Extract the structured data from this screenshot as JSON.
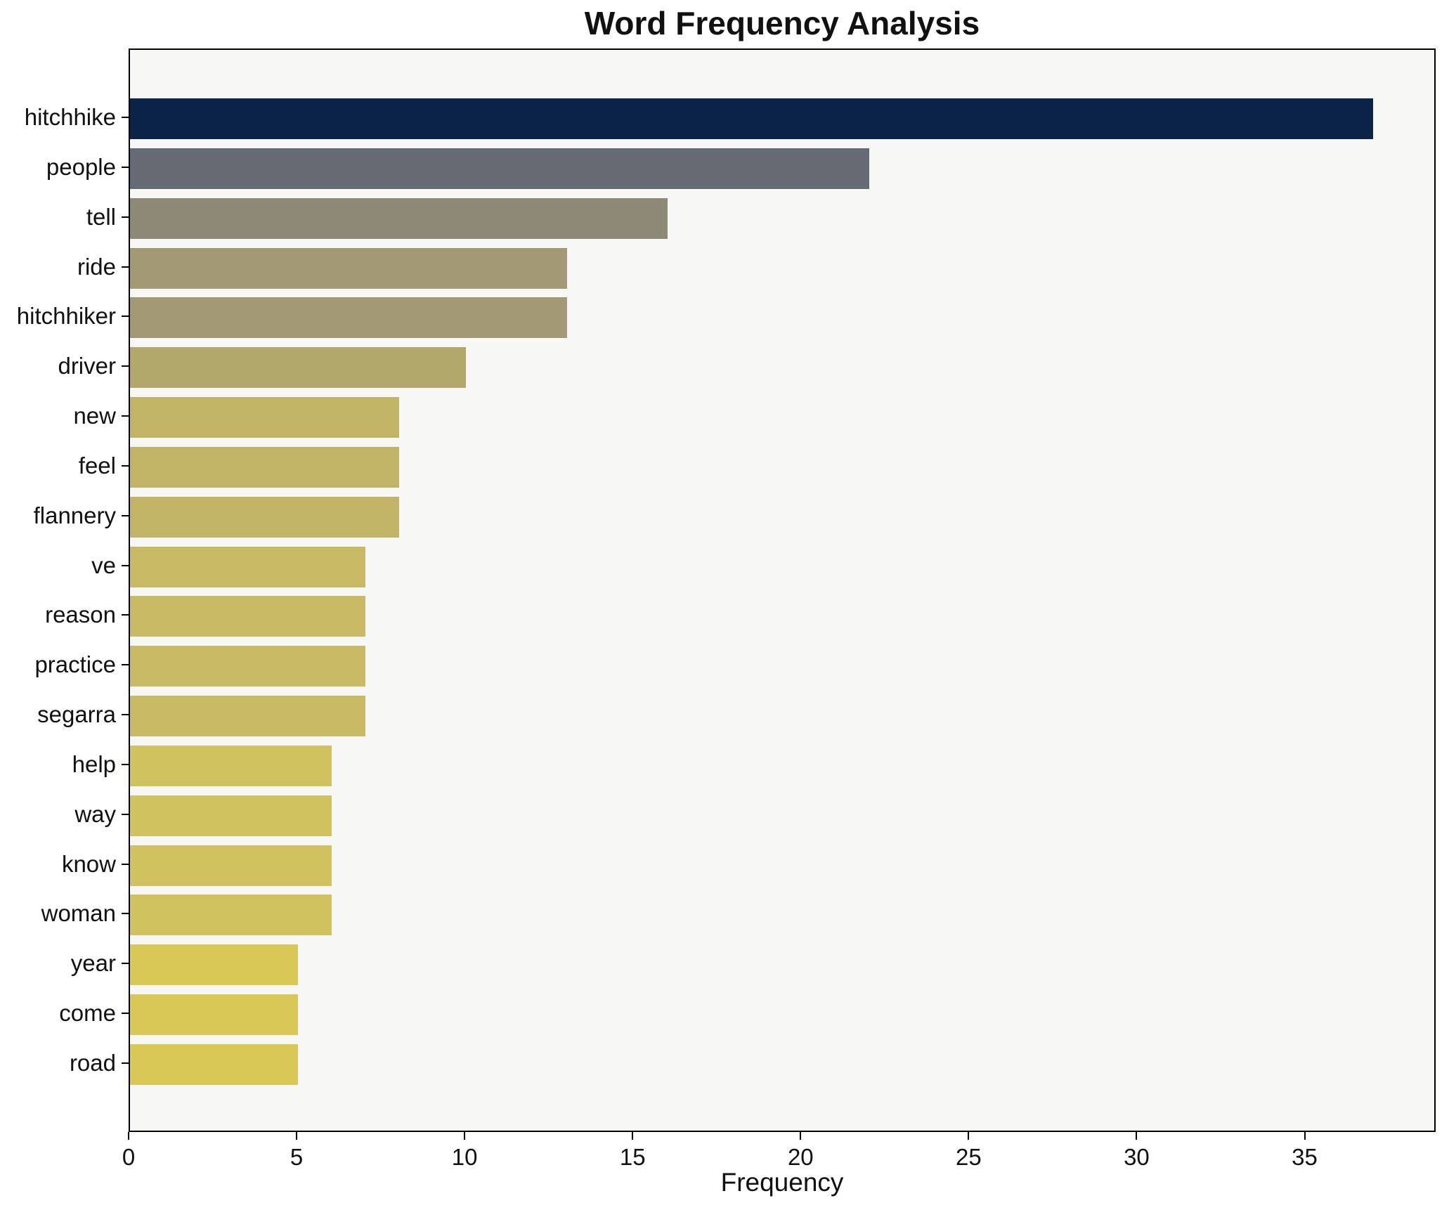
{
  "chart_data": {
    "type": "bar",
    "orientation": "horizontal",
    "title": "Word Frequency Analysis",
    "xlabel": "Frequency",
    "ylabel": "",
    "categories": [
      "hitchhike",
      "people",
      "tell",
      "ride",
      "hitchhiker",
      "driver",
      "new",
      "feel",
      "flannery",
      "ve",
      "reason",
      "practice",
      "segarra",
      "help",
      "way",
      "know",
      "woman",
      "year",
      "come",
      "road"
    ],
    "values": [
      37,
      22,
      16,
      13,
      13,
      10,
      8,
      8,
      8,
      7,
      7,
      7,
      7,
      6,
      6,
      6,
      6,
      5,
      5,
      5
    ],
    "bar_colors": [
      "#0b2347",
      "#666a73",
      "#8e8876",
      "#a19a74",
      "#a19a74",
      "#b2a86c",
      "#c2b467",
      "#c2b467",
      "#c2b467",
      "#c8ba64",
      "#c8ba64",
      "#c8ba64",
      "#c8ba64",
      "#d0c25e",
      "#d0c25e",
      "#d0c25e",
      "#d0c25e",
      "#d8c856",
      "#d8c856",
      "#d8c856"
    ],
    "xlim": [
      0,
      38.9
    ],
    "xticks": [
      0,
      5,
      10,
      15,
      20,
      25,
      30,
      35
    ],
    "grid": false,
    "legend": null,
    "plot_background": "#f7f7f6",
    "figure_background": "#ffffff",
    "axis_color": "#000000"
  }
}
